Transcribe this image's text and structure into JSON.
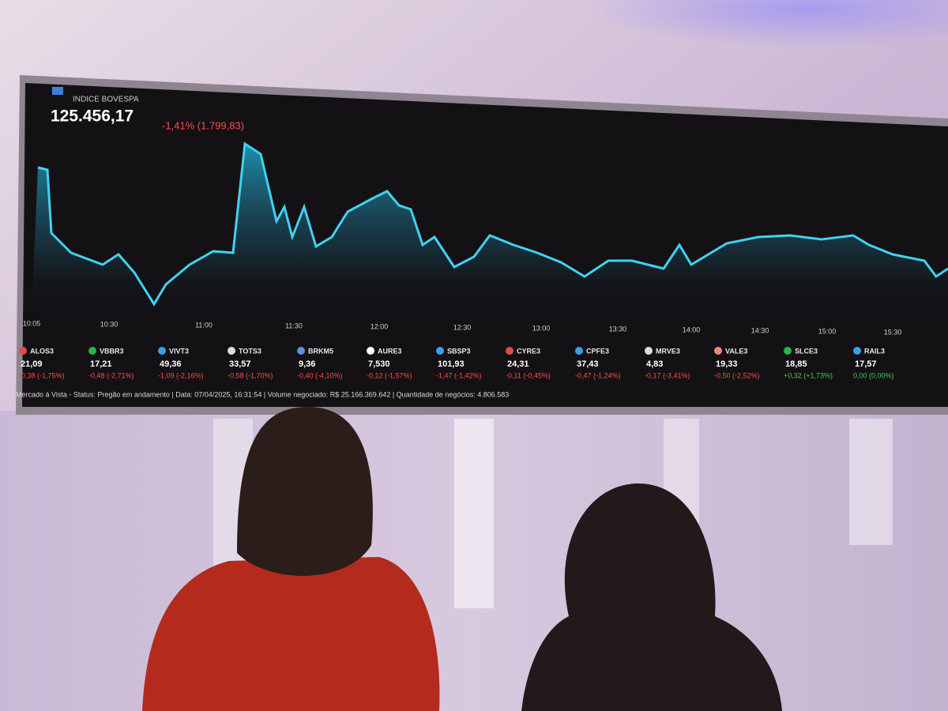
{
  "screen": {
    "index_name": "INDICE BOVESPA",
    "index_value": "125.456,17",
    "change": "-1,41% (1.799,83)",
    "times": [
      "10:05",
      "10:30",
      "11:00",
      "11:30",
      "12:00",
      "12:30",
      "13:00",
      "13:30",
      "14:00",
      "14:30",
      "15:00",
      "15:30"
    ],
    "tickers": [
      {
        "symbol": "ALOS3",
        "price": "21,09",
        "change": "-0,38 (-1,75%)"
      },
      {
        "symbol": "VBBR3",
        "price": "17,21",
        "change": "-0,48 (-2,71%)"
      },
      {
        "symbol": "VIVT3",
        "price": "49,36",
        "change": "-1,09 (-2,16%)"
      },
      {
        "symbol": "TOTS3",
        "price": "33,57",
        "change": "-0,58 (-1,70%)"
      },
      {
        "symbol": "BRKM5",
        "price": "9,36",
        "change": "-0,40 (-4,10%)"
      },
      {
        "symbol": "AURE3",
        "price": "7,530",
        "change": "-0,12 (-1,57%)"
      },
      {
        "symbol": "SBSP3",
        "price": "101,93",
        "change": "-1,47 (-1,42%)"
      },
      {
        "symbol": "CYRE3",
        "price": "24,31",
        "change": "-0,11 (-0,45%)"
      },
      {
        "symbol": "CPFE3",
        "price": "37,43",
        "change": "-0,47 (-1,24%)"
      },
      {
        "symbol": "MRVE3",
        "price": "4,83",
        "change": "-0,17 (-3,41%)"
      },
      {
        "symbol": "VALE3",
        "price": "19,33",
        "change": "-0,50 (-2,52%)"
      },
      {
        "symbol": "SLCE3",
        "price": "18,85",
        "change": "+0,32 (+1,73%)"
      },
      {
        "symbol": "RAIL3",
        "price": "17,57",
        "change": "0,00 (0,00%)"
      }
    ],
    "status": "Mercado à Vista - Status: Pregão em andamento | Data: 07/04/2025, 16:31:54 | Volume negociado: R$ 25.166.369.642 | Quantidade de negócios: 4.806.583"
  }
}
